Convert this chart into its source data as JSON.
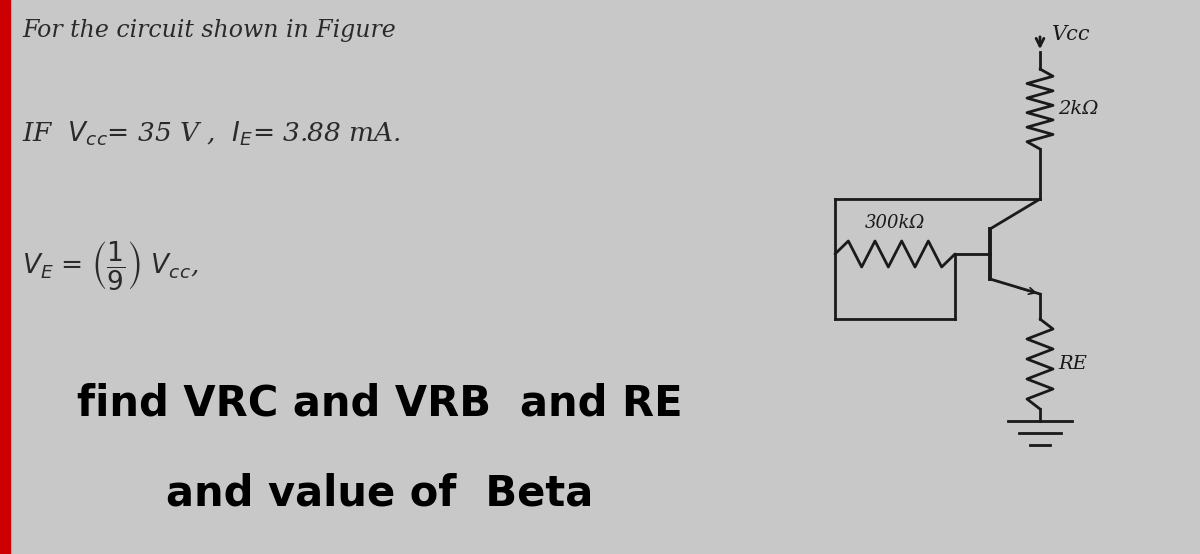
{
  "bg_color": "#c8c8c8",
  "title_text": "For the circuit shown in Figure",
  "bottom_line1": "find VRC and VRB  and RE",
  "bottom_line2": "and value of  Beta",
  "circuit_vcc_label": "Vcc",
  "circuit_rc_label": "2kΩ",
  "circuit_rb_label": "300kΩ",
  "circuit_re_label": "RE",
  "red_bar_color": "#cc0000",
  "line_color": "#1a1a1a",
  "text_color_bold": "#000000",
  "text_color_hw": "#2a2a2a"
}
